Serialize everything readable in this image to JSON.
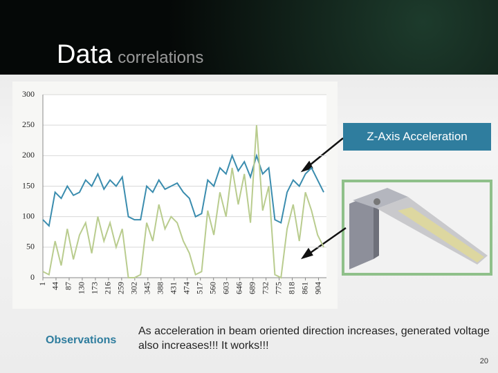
{
  "header": {
    "title_main": "Data",
    "title_sub": "correlations"
  },
  "chart_data": {
    "type": "line",
    "x": [
      1,
      21,
      41,
      61,
      81,
      101,
      121,
      141,
      161,
      181,
      201,
      221,
      241,
      261,
      281,
      301,
      321,
      341,
      361,
      381,
      401,
      421,
      441,
      461,
      481,
      501,
      521,
      541,
      561,
      581,
      601,
      621,
      641,
      661,
      681,
      701,
      721,
      741,
      761,
      781,
      801,
      821,
      841,
      861,
      881,
      901,
      921
    ],
    "series": [
      {
        "name": "Z-Axis Acceleration",
        "color": "#3a8cae",
        "values": [
          95,
          85,
          140,
          130,
          150,
          135,
          140,
          160,
          150,
          170,
          145,
          160,
          150,
          165,
          100,
          95,
          95,
          150,
          140,
          160,
          145,
          150,
          155,
          140,
          130,
          100,
          105,
          160,
          150,
          180,
          170,
          200,
          175,
          190,
          165,
          200,
          170,
          180,
          95,
          90,
          140,
          160,
          150,
          170,
          180,
          160,
          140
        ]
      },
      {
        "color": "#b9cc8e",
        "values": [
          10,
          5,
          60,
          20,
          80,
          30,
          70,
          90,
          40,
          100,
          60,
          90,
          50,
          80,
          0,
          0,
          5,
          90,
          60,
          120,
          80,
          100,
          90,
          60,
          40,
          5,
          10,
          110,
          70,
          140,
          100,
          180,
          120,
          170,
          90,
          250,
          110,
          150,
          5,
          0,
          80,
          120,
          60,
          140,
          110,
          70,
          50
        ]
      }
    ],
    "xlim": [
      1,
      930
    ],
    "xticks": [
      1,
      44,
      87,
      130,
      173,
      216,
      259,
      302,
      345,
      388,
      431,
      474,
      517,
      560,
      603,
      646,
      689,
      732,
      775,
      818,
      861,
      904
    ],
    "ylim": [
      0,
      300
    ],
    "yticks": [
      0,
      50,
      100,
      150,
      200,
      250,
      300
    ],
    "grid": true
  },
  "observations": {
    "label": "Observations",
    "text": "As acceleration in beam oriented direction increases, generated voltage also increases!!! It works!!!"
  },
  "page_number": "20"
}
